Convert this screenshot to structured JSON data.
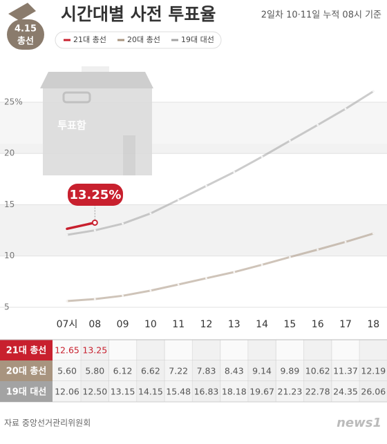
{
  "chart_data": {
    "type": "line",
    "badge": [
      "4.15",
      "총선"
    ],
    "title": "시간대별 사전 투표율",
    "subtitle": "2일차 10·11일 누적  08시 기준",
    "illustration_label": "투표함",
    "callout": "13.25%",
    "categories": [
      "07시",
      "08",
      "09",
      "10",
      "11",
      "12",
      "13",
      "14",
      "15",
      "16",
      "17",
      "18"
    ],
    "series": [
      {
        "name": "21대 총선",
        "color": "#c8202e",
        "values": [
          12.65,
          13.25,
          null,
          null,
          null,
          null,
          null,
          null,
          null,
          null,
          null,
          null
        ],
        "value_labels": [
          "12.65",
          "13.25",
          null,
          null,
          null,
          null,
          null,
          null,
          null,
          null,
          null,
          null
        ]
      },
      {
        "name": "20대 총선",
        "color": "#a8947f",
        "values": [
          5.6,
          5.8,
          6.12,
          6.62,
          7.22,
          7.83,
          8.43,
          9.14,
          9.89,
          10.62,
          11.37,
          12.19
        ],
        "value_labels": [
          "5.60",
          "5.80",
          "6.12",
          "6.62",
          "7.22",
          "7.83",
          "8.43",
          "9.14",
          "9.89",
          "10.62",
          "11.37",
          "12.19"
        ]
      },
      {
        "name": "19대 대선",
        "color": "#a3a3a3",
        "values": [
          12.06,
          12.5,
          13.15,
          14.15,
          15.48,
          16.83,
          18.18,
          19.67,
          21.23,
          22.78,
          24.35,
          26.06
        ],
        "value_labels": [
          "12.06",
          "12.50",
          "13.15",
          "14.15",
          "15.48",
          "16.83",
          "18.18",
          "19.67",
          "21.23",
          "22.78",
          "24.35",
          "26.06"
        ]
      }
    ],
    "ylim": [
      2,
      28
    ],
    "yticks": [
      5,
      10,
      15,
      20,
      {
        "value": 25,
        "label": "25%"
      }
    ],
    "grid": true,
    "source": "자료  중앙선거관리위원회",
    "logo": "news1"
  }
}
